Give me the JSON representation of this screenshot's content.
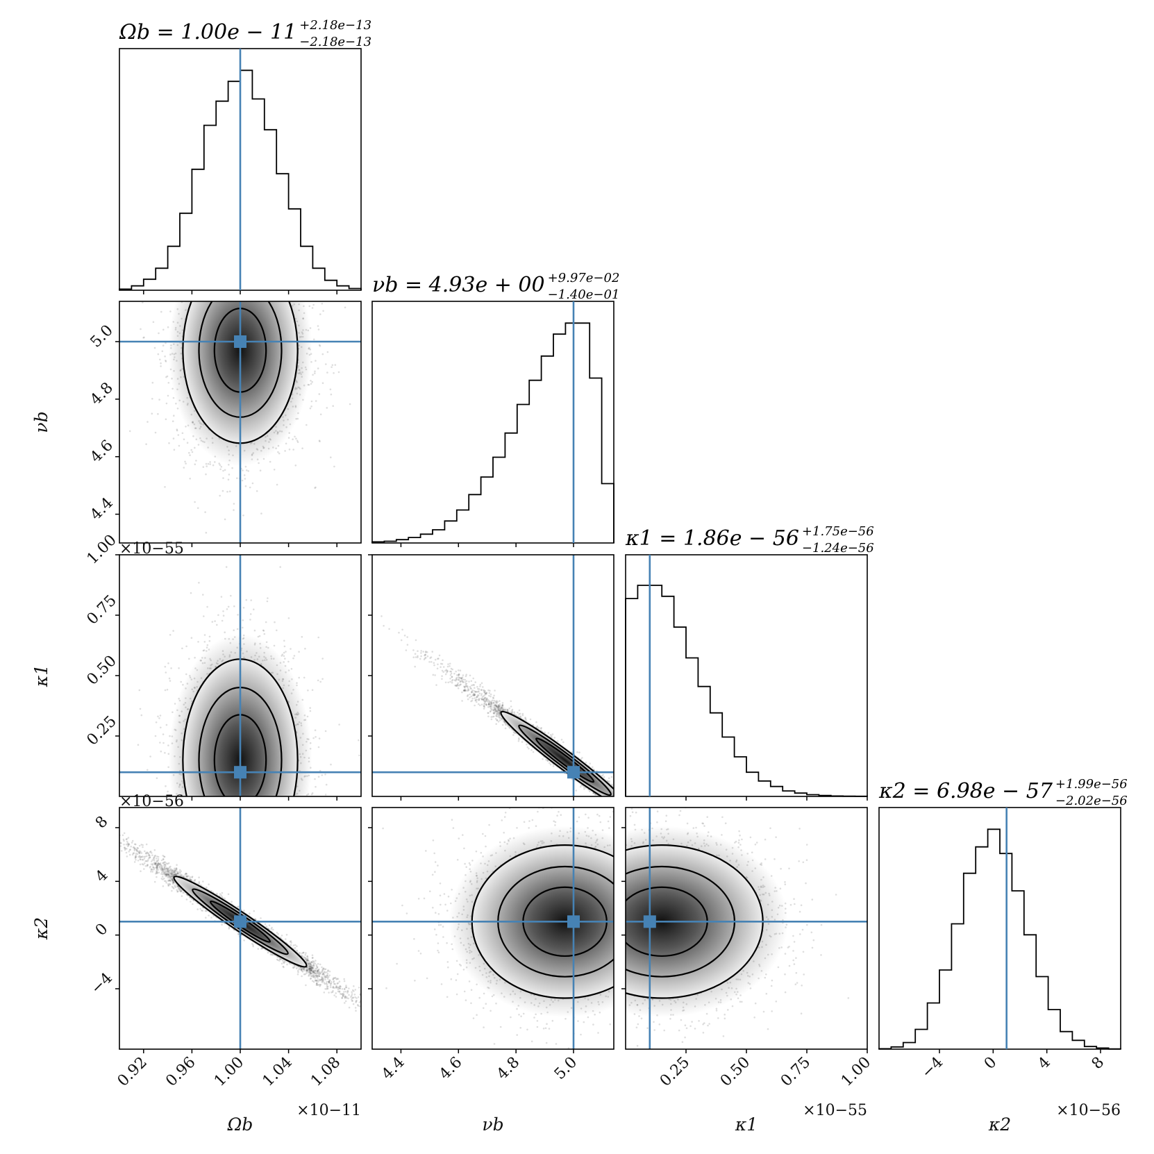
{
  "chart_data": {
    "type": "corner",
    "truth_color": "#4682b4",
    "parameters": [
      {
        "symbol": "Ω",
        "sub": "b",
        "axis_label": "Ωb",
        "title_prefix": "Ωb = 1.00e − 11",
        "title_sup": "+2.18e−13",
        "title_sub": "−2.18e−13",
        "range": [
          0.9,
          1.1
        ],
        "truth": 1.0,
        "ticks": [
          0.92,
          0.96,
          1.0,
          1.04,
          1.08
        ],
        "tick_labels": [
          "0.92",
          "0.96",
          "1.00",
          "1.04",
          "1.08"
        ],
        "scale": "×10−11",
        "hist": [
          0.005,
          0.02,
          0.05,
          0.1,
          0.2,
          0.35,
          0.55,
          0.75,
          0.86,
          0.95,
          1.0,
          0.87,
          0.73,
          0.53,
          0.37,
          0.2,
          0.1,
          0.045,
          0.02,
          0.008
        ]
      },
      {
        "symbol": "ν",
        "sub": "b",
        "axis_label": "νb",
        "title_prefix": "νb = 4.93e + 00",
        "title_sup": "+9.97e−02",
        "title_sub": "−1.40e−01",
        "range": [
          4.3,
          5.14
        ],
        "truth": 5.0,
        "ticks": [
          4.4,
          4.6,
          4.8,
          5.0
        ],
        "tick_labels": [
          "4.4",
          "4.6",
          "4.8",
          "5.0"
        ],
        "scale": "",
        "hist": [
          0.005,
          0.008,
          0.015,
          0.025,
          0.04,
          0.06,
          0.1,
          0.15,
          0.22,
          0.3,
          0.39,
          0.5,
          0.63,
          0.74,
          0.85,
          0.95,
          1.0,
          1.0,
          0.75,
          0.27
        ]
      },
      {
        "symbol": "κ",
        "sub": "1",
        "axis_label": "κ1",
        "title_prefix": "κ1 = 1.86e − 56",
        "title_sup": "+1.75e−56",
        "title_sub": "−1.24e−56",
        "range": [
          0.0,
          1.0
        ],
        "truth": 0.1,
        "ticks": [
          0.25,
          0.5,
          0.75,
          1.0
        ],
        "tick_labels": [
          "0.25",
          "0.50",
          "0.75",
          "1.00"
        ],
        "scale": "×10−55",
        "hist": [
          0.9,
          0.96,
          0.96,
          0.91,
          0.77,
          0.63,
          0.5,
          0.38,
          0.27,
          0.18,
          0.11,
          0.07,
          0.045,
          0.025,
          0.015,
          0.008,
          0.004,
          0.002,
          0.001,
          0.0005
        ]
      },
      {
        "symbol": "κ",
        "sub": "2",
        "axis_label": "κ2",
        "title_prefix": "κ2 = 6.98e − 57",
        "title_sup": "+1.99e−56",
        "title_sub": "−2.02e−56",
        "range": [
          -8.5,
          9.5
        ],
        "truth": 1.0,
        "ticks": [
          -4,
          0,
          4,
          8
        ],
        "tick_labels": [
          "−4",
          "0",
          "4",
          "8"
        ],
        "scale": "×10−56",
        "hist": [
          0.002,
          0.01,
          0.03,
          0.09,
          0.21,
          0.36,
          0.57,
          0.8,
          0.92,
          1.0,
          0.89,
          0.72,
          0.52,
          0.33,
          0.18,
          0.08,
          0.04,
          0.012,
          0.005,
          0.001
        ]
      }
    ],
    "pairs": [
      {
        "row": 1,
        "col": 0,
        "rho": 0.05
      },
      {
        "row": 2,
        "col": 0,
        "rho": 0.0
      },
      {
        "row": 2,
        "col": 1,
        "rho": -0.98
      },
      {
        "row": 3,
        "col": 0,
        "rho": -0.97
      },
      {
        "row": 3,
        "col": 1,
        "rho": 0.0
      },
      {
        "row": 3,
        "col": 2,
        "rho": -0.05
      }
    ]
  }
}
